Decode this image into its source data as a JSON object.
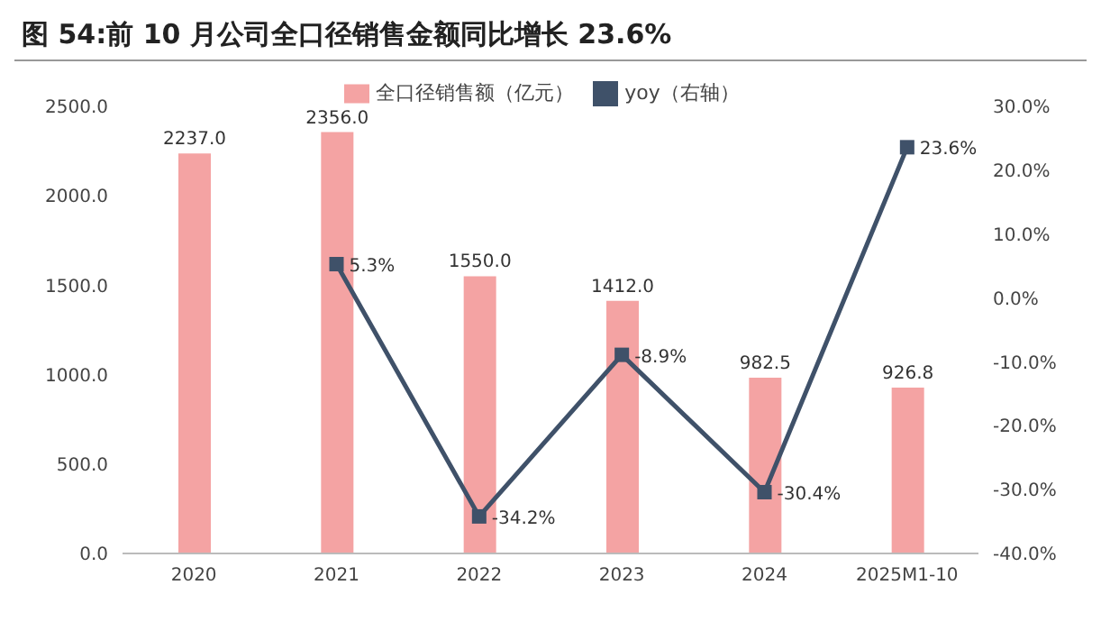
{
  "chart_data": {
    "type": "bar",
    "title": "图 54:前 10 月公司全口径销售金额同比增长 23.6%",
    "categories": [
      "2020",
      "2021",
      "2022",
      "2023",
      "2024",
      "2025M1-10"
    ],
    "series": [
      {
        "name": "全口径销售额（亿元）",
        "color": "#f4a3a3",
        "values": [
          2237.0,
          2356.0,
          1550.0,
          1412.0,
          982.5,
          926.8
        ],
        "value_labels": [
          "2237.0",
          "2356.0",
          "1550.0",
          "1412.0",
          "982.5",
          "926.8"
        ]
      },
      {
        "name": "yoy（右轴）",
        "type": "line",
        "axis": "y2",
        "color": "#3f5169",
        "marker": "square",
        "values": [
          null,
          5.3,
          -34.2,
          -8.9,
          -30.4,
          23.6
        ],
        "value_labels": [
          null,
          "5.3%",
          "-34.2%",
          "-8.9%",
          "-30.4%",
          "23.6%"
        ]
      }
    ],
    "ylim": [
      0,
      2500
    ],
    "yticks": [
      {
        "value": 0,
        "label": "0.0"
      },
      {
        "value": 500,
        "label": "500.0"
      },
      {
        "value": 1000,
        "label": "1000.0"
      },
      {
        "value": 1500,
        "label": "1500.0"
      },
      {
        "value": 2000,
        "label": "2000.0"
      },
      {
        "value": 2500,
        "label": "2500.0"
      }
    ],
    "y2lim": [
      -40,
      30
    ],
    "y2ticks": [
      {
        "value": -40,
        "label": "-40.0%"
      },
      {
        "value": -30,
        "label": "-30.0%"
      },
      {
        "value": -20,
        "label": "-20.0%"
      },
      {
        "value": -10,
        "label": "-10.0%"
      },
      {
        "value": 0,
        "label": "0.0%"
      },
      {
        "value": 10,
        "label": "10.0%"
      },
      {
        "value": 20,
        "label": "20.0%"
      },
      {
        "value": 30,
        "label": "30.0%"
      }
    ],
    "grid": false,
    "legend": "top"
  }
}
